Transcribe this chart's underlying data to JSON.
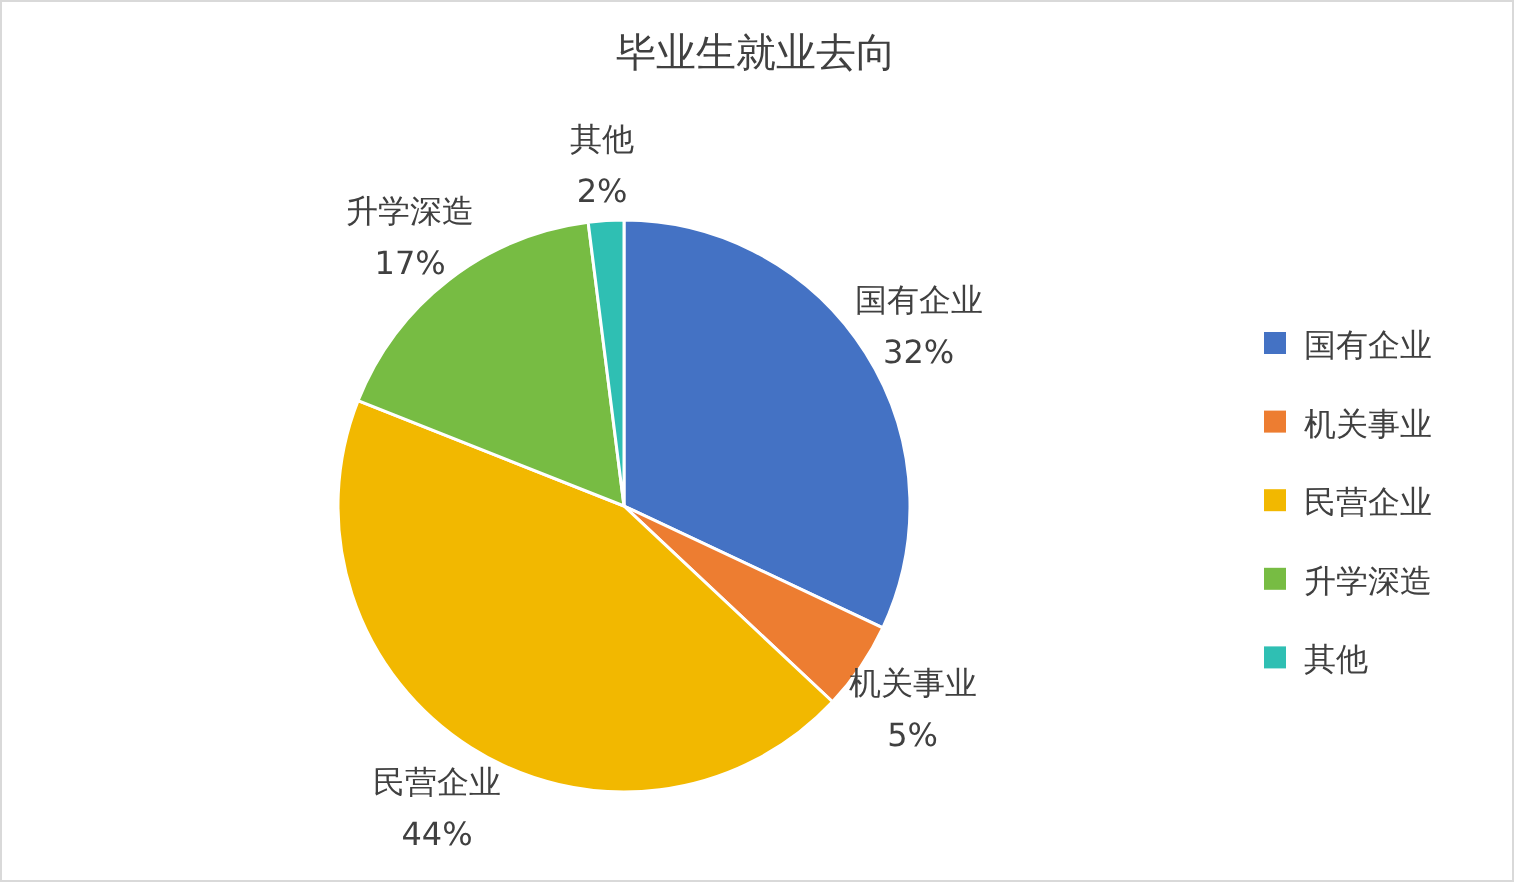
{
  "chart_data": {
    "type": "pie",
    "title": "毕业生就业去向",
    "categories": [
      "国有企业",
      "机关事业",
      "民营企业",
      "升学深造",
      "其他"
    ],
    "values": [
      32,
      5,
      44,
      17,
      2
    ],
    "value_labels": [
      "32%",
      "5%",
      "44%",
      "17%",
      "2%"
    ],
    "colors": [
      "#4472c4",
      "#ed7d31",
      "#f2b800",
      "#77bc43",
      "#2fbfb3"
    ],
    "legend": "right"
  }
}
